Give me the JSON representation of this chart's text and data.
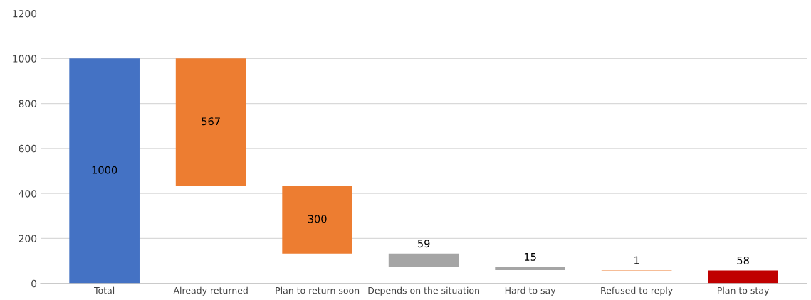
{
  "chart_data": {
    "type": "bar",
    "categories": [
      "Total",
      "Already returned",
      "Plan to return soon",
      "Depends on the situation",
      "Hard to say",
      "Refused to reply",
      "Plan to stay"
    ],
    "values": [
      1000,
      567,
      300,
      59,
      15,
      1,
      58
    ],
    "base": [
      0,
      433,
      133,
      74,
      59,
      58,
      0
    ],
    "colors": [
      "#4472c4",
      "#ed7d31",
      "#ed7d31",
      "#a5a5a5",
      "#a5a5a5",
      "#ed7d31",
      "#c00000"
    ],
    "ylim": [
      0,
      1200
    ],
    "yticks": [
      0,
      200,
      400,
      600,
      800,
      1000,
      1200
    ],
    "grid": "y",
    "data_labels": true
  }
}
